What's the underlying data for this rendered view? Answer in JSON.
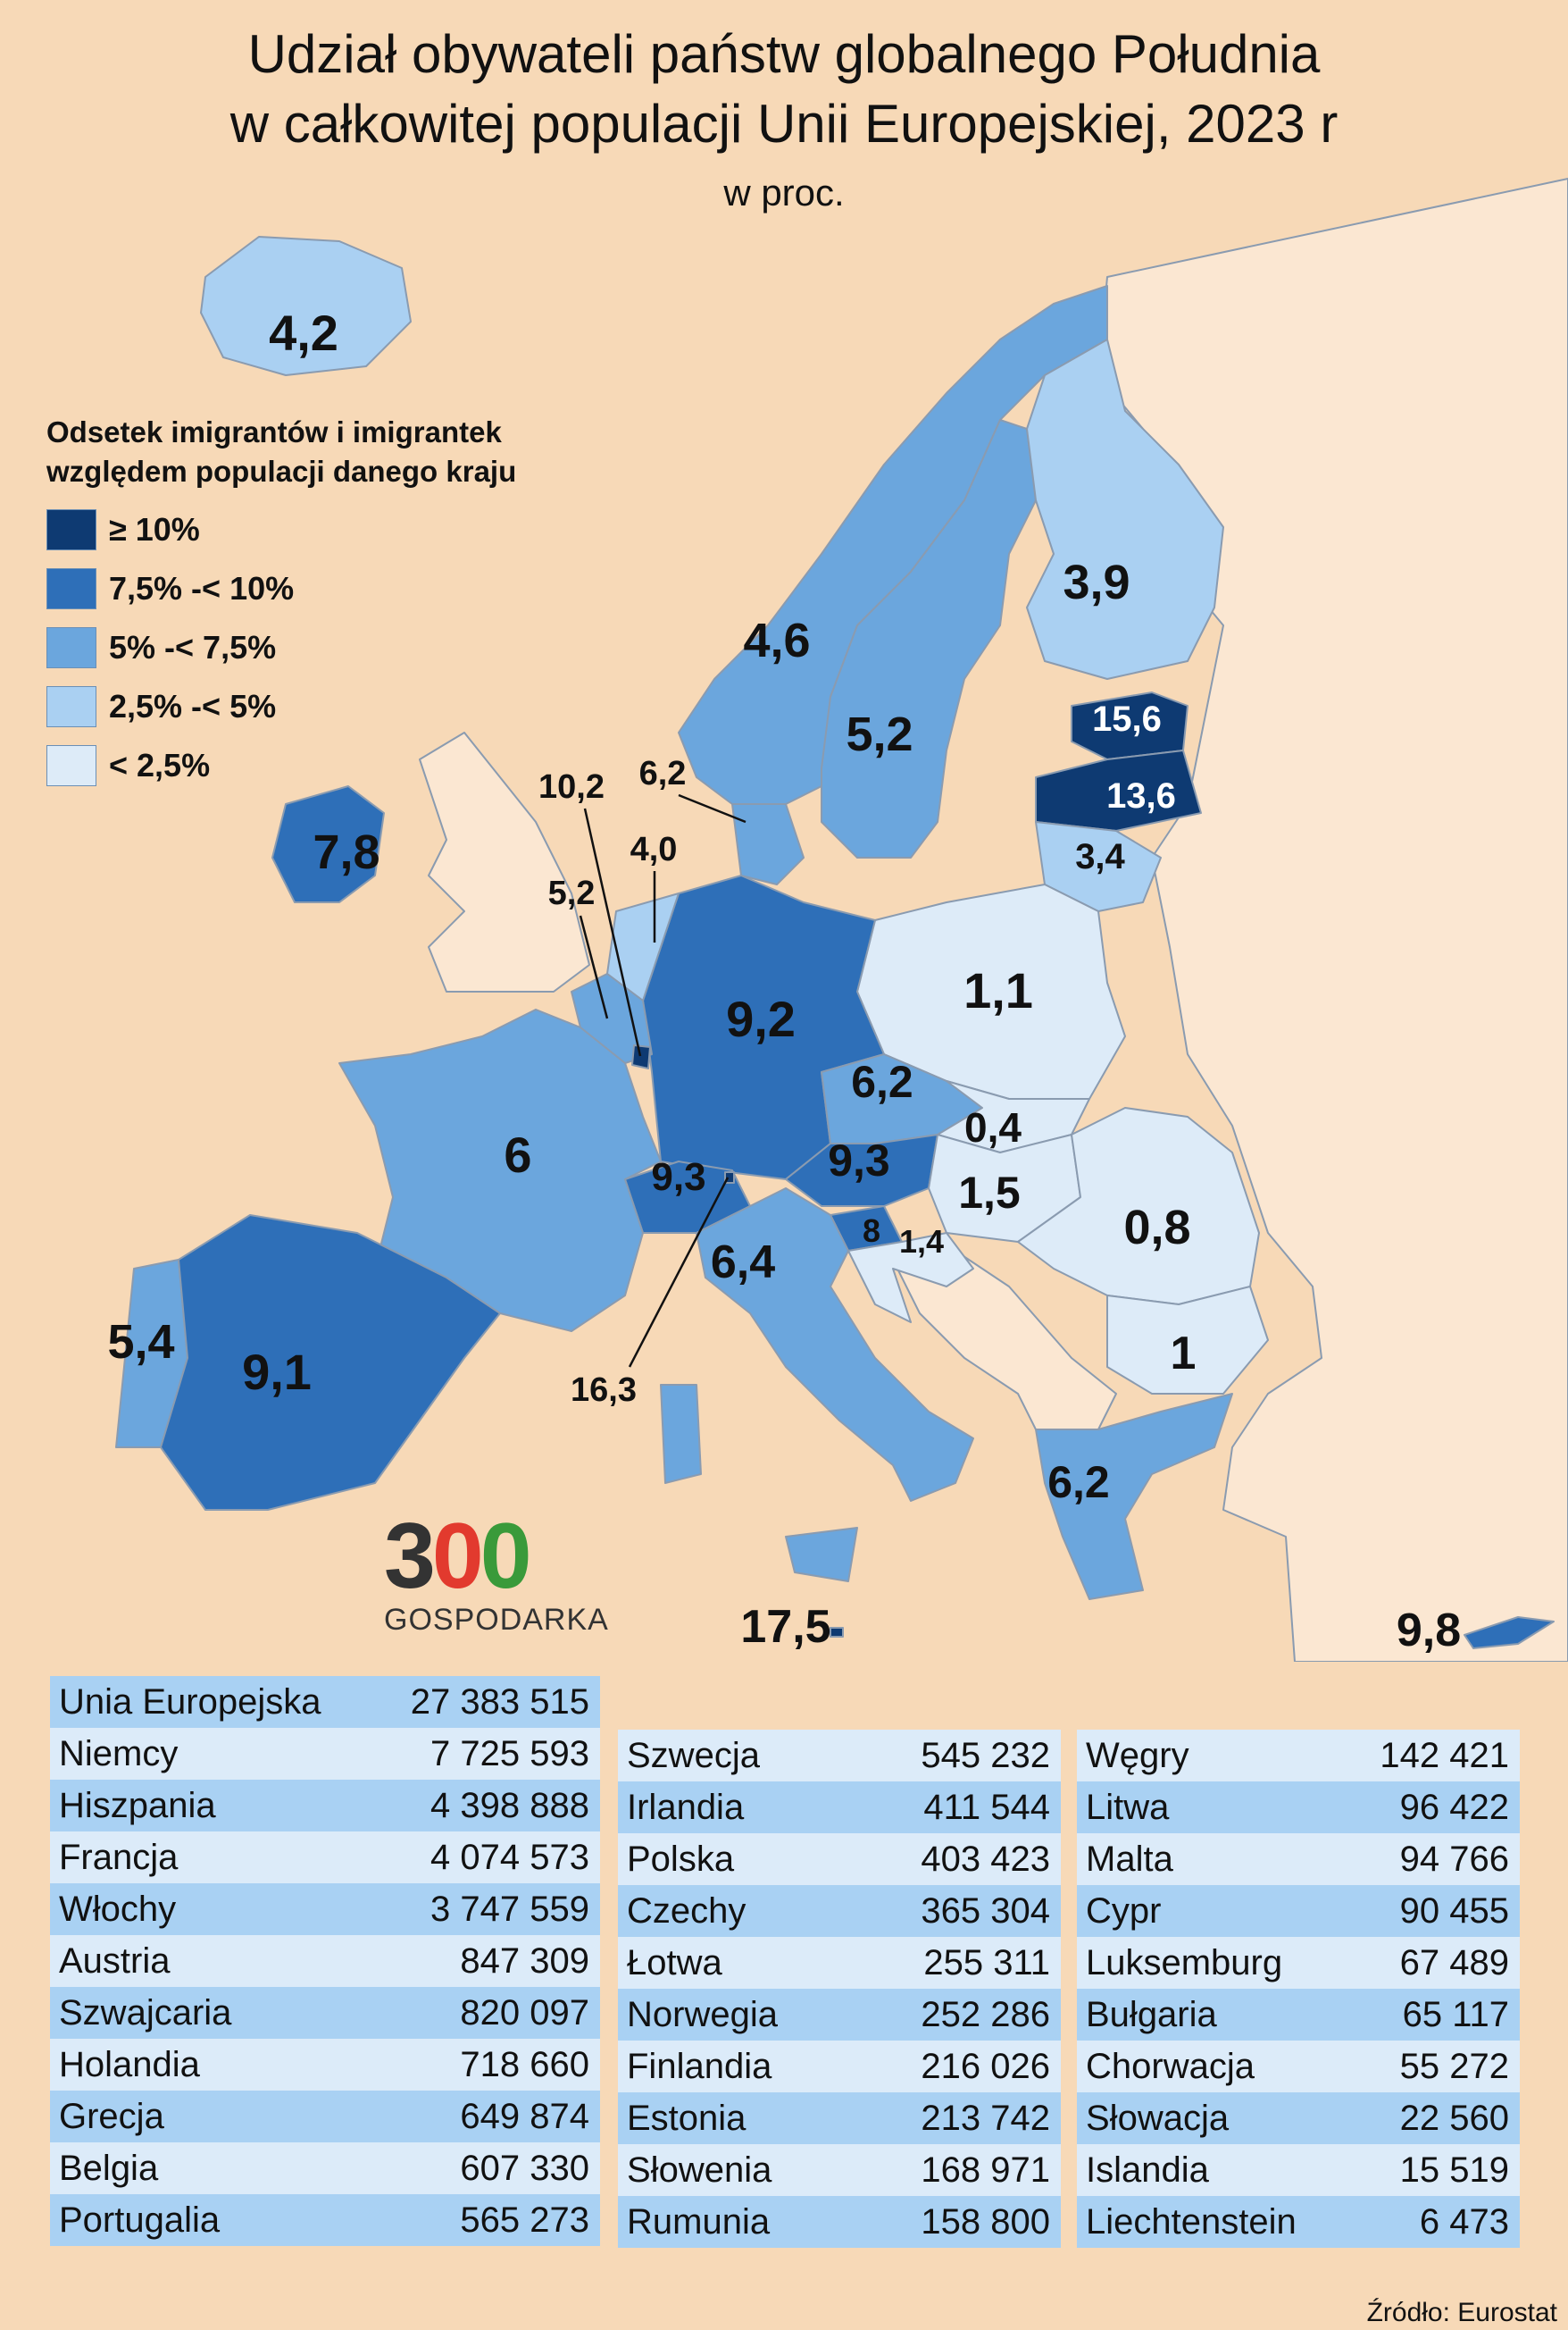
{
  "title_line1": "Udział obywateli państw globalnego Południa",
  "title_line2": "w całkowitej populacji Unii Europejskiej, 2023 r",
  "subtitle": "w proc.",
  "legend": {
    "title_line1": "Odsetek imigrantów i imigrantek",
    "title_line2": "względem populacji danego kraju",
    "items": [
      {
        "label": "≥ 10%",
        "color": "#0E3A72"
      },
      {
        "label": "7,5% -< 10%",
        "color": "#2E6FB8"
      },
      {
        "label": "5% -< 7,5%",
        "color": "#6BA6DD"
      },
      {
        "label": "2,5% -< 5%",
        "color": "#AAD0F2"
      },
      {
        "label": "< 2,5%",
        "color": "#DDEBF8"
      }
    ]
  },
  "map_labels": {
    "iceland": "4,2",
    "ireland": "7,8",
    "norway": "4,6",
    "sweden": "5,2",
    "finland": "3,9",
    "estonia": "15,6",
    "latvia": "13,6",
    "lithuania": "3,4",
    "denmark": "6,2",
    "luxembourg": "10,2",
    "belgium": "5,2",
    "netherlands": "4,0",
    "germany": "9,2",
    "poland": "1,1",
    "czechia": "6,2",
    "slovakia": "0,4",
    "austria": "9,3",
    "hungary": "1,5",
    "romania": "0,8",
    "slovenia": "8",
    "croatia": "1,4",
    "switzerland": "9,3",
    "liechtenstein": "16,3",
    "france": "6",
    "italy": "6,4",
    "portugal": "5,4",
    "spain": "9,1",
    "bulgaria": "1",
    "greece": "6,2",
    "malta": "17,5",
    "cyprus": "9,8"
  },
  "logo": {
    "digits": [
      "3",
      "0",
      "0"
    ],
    "text": "GOSPODARKA"
  },
  "table": {
    "header": {
      "name": "Unia Europejska",
      "value": "27 383 515"
    },
    "col1": [
      {
        "name": "Niemcy",
        "value": "7 725 593"
      },
      {
        "name": "Hiszpania",
        "value": "4 398 888"
      },
      {
        "name": "Francja",
        "value": "4 074 573"
      },
      {
        "name": "Włochy",
        "value": "3 747 559"
      },
      {
        "name": "Austria",
        "value": "847 309"
      },
      {
        "name": "Szwajcaria",
        "value": "820 097"
      },
      {
        "name": "Holandia",
        "value": "718 660"
      },
      {
        "name": "Grecja",
        "value": "649 874"
      },
      {
        "name": "Belgia",
        "value": "607 330"
      },
      {
        "name": "Portugalia",
        "value": "565 273"
      }
    ],
    "col2": [
      {
        "name": "Szwecja",
        "value": "545 232"
      },
      {
        "name": "Irlandia",
        "value": "411 544"
      },
      {
        "name": "Polska",
        "value": "403 423"
      },
      {
        "name": "Czechy",
        "value": "365 304"
      },
      {
        "name": "Łotwa",
        "value": "255 311"
      },
      {
        "name": "Norwegia",
        "value": "252 286"
      },
      {
        "name": "Finlandia",
        "value": "216 026"
      },
      {
        "name": "Estonia",
        "value": "213 742"
      },
      {
        "name": "Słowenia",
        "value": "168 971"
      },
      {
        "name": "Rumunia",
        "value": "158 800"
      }
    ],
    "col3": [
      {
        "name": "Węgry",
        "value": "142 421"
      },
      {
        "name": "Litwa",
        "value": "96 422"
      },
      {
        "name": "Malta",
        "value": "94 766"
      },
      {
        "name": "Cypr",
        "value": "90 455"
      },
      {
        "name": "Luksemburg",
        "value": "67 489"
      },
      {
        "name": "Bułgaria",
        "value": "65 117"
      },
      {
        "name": "Chorwacja",
        "value": "55 272"
      },
      {
        "name": "Słowacja",
        "value": "22 560"
      },
      {
        "name": "Islandia",
        "value": "15 519"
      },
      {
        "name": "Liechtenstein",
        "value": "6 473"
      }
    ]
  },
  "source": "Źródło: Eurostat"
}
